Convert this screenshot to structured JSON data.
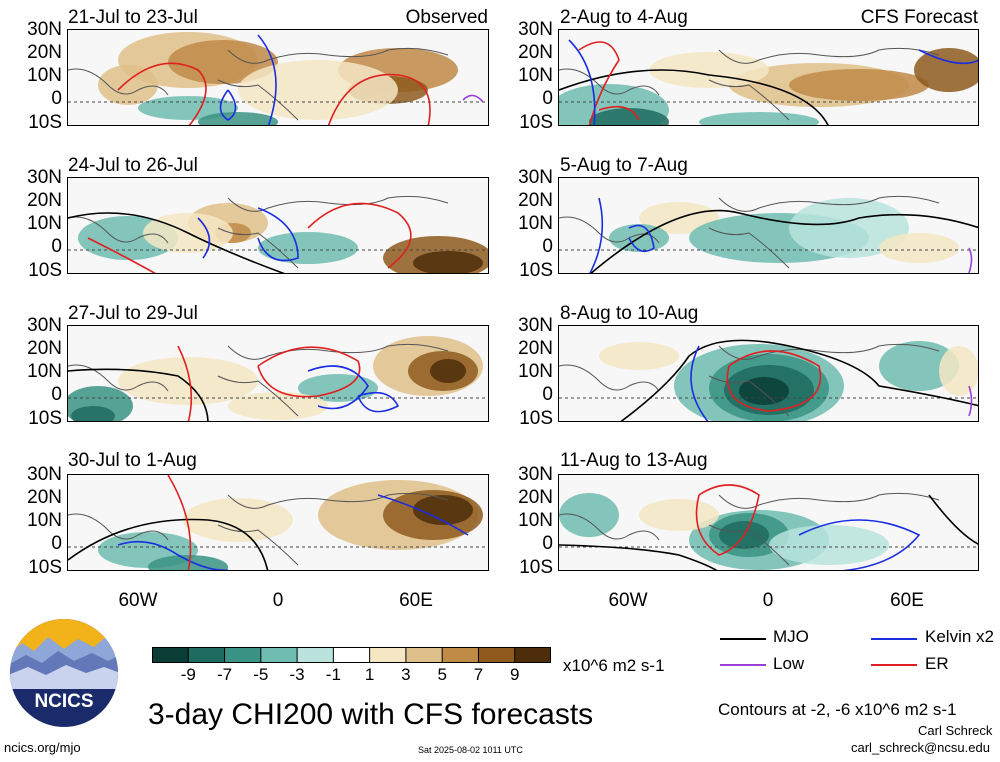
{
  "chart_data": {
    "type": "contour-map-grid",
    "title": "3-day CHI200 with CFS forecasts",
    "variable": "CHI200",
    "units": "x10^6 m2 s-1",
    "lat_ticks": [
      "30N",
      "20N",
      "10N",
      "0",
      "10S"
    ],
    "lon_ticks": [
      "60W",
      "0",
      "60E"
    ],
    "panels": [
      {
        "title": "21-Jul to 23-Jul",
        "tag": "Observed"
      },
      {
        "title": "2-Aug to 4-Aug",
        "tag": "CFS Forecast"
      },
      {
        "title": "24-Jul to 26-Jul",
        "tag": ""
      },
      {
        "title": "5-Aug to 7-Aug",
        "tag": ""
      },
      {
        "title": "27-Jul to 29-Jul",
        "tag": ""
      },
      {
        "title": "8-Aug to 10-Aug",
        "tag": ""
      },
      {
        "title": "30-Jul to 1-Aug",
        "tag": ""
      },
      {
        "title": "11-Aug to 13-Aug",
        "tag": ""
      }
    ],
    "colorbar": {
      "ticks": [
        "-9",
        "-7",
        "-5",
        "-3",
        "-1",
        "1",
        "3",
        "5",
        "7",
        "9"
      ],
      "colors": [
        "#0b3d36",
        "#1f6b5f",
        "#3a9384",
        "#6fbcb0",
        "#b9e3dc",
        "#ffffff",
        "#f5e6c4",
        "#dfc08a",
        "#c08a47",
        "#8e5a1e",
        "#4e2e0a"
      ]
    },
    "legend": [
      {
        "label": "MJO",
        "color": "#000000"
      },
      {
        "label": "Kelvin x2",
        "color": "#1a2ee0"
      },
      {
        "label": "Low",
        "color": "#9b3fd6"
      },
      {
        "label": "ER",
        "color": "#e02020"
      }
    ],
    "contours_note": "Contours at -2, -6 x10^6 m2 s-1"
  },
  "footer": {
    "logo_text": "NCICS",
    "url": "ncics.org/mjo",
    "timestamp": "Sat 2025-08-02 1011 UTC",
    "author": "Carl Schreck",
    "email": "carl_schreck@ncsu.edu"
  }
}
